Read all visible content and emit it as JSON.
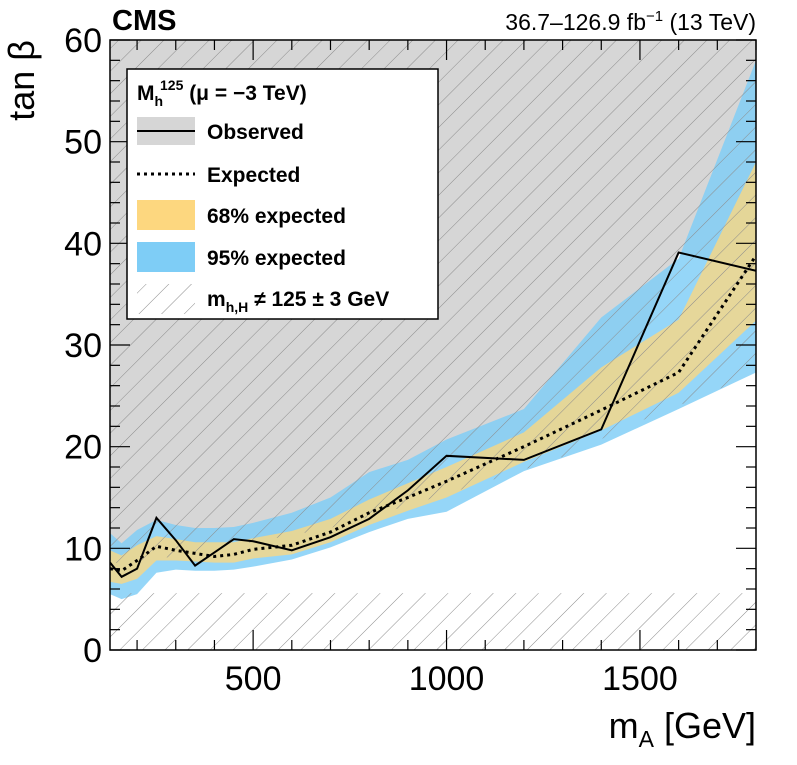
{
  "header": {
    "experiment": "CMS",
    "lumi": "36.7–126.9 fb",
    "lumi_exp": "−1",
    "energy": " (13 TeV)"
  },
  "axes": {
    "xlabel": "m",
    "xlabel_sub": "A",
    "xlabel_unit": " [GeV]",
    "ylabel": "tan β"
  },
  "legend": {
    "title_main": "M",
    "title_sub": "h",
    "title_sup": "125",
    "title_rest": " (μ = −3 TeV)",
    "observed": "Observed",
    "expected": "Expected",
    "band68": "68% expected",
    "band95": "95% expected",
    "hatch_main": "m",
    "hatch_sub": "h,H",
    "hatch_rest": " ≠ 125 ± 3 GeV"
  },
  "colors": {
    "excluded_fill": "#d6d6d6",
    "band68": "#fdd77f",
    "band95": "#7ecdf6",
    "observed": "#000000",
    "expected": "#000000",
    "hatch": "#8c8c8c"
  },
  "chart_data": {
    "type": "line",
    "title": "",
    "xlabel": "m_A [GeV]",
    "ylabel": "tan β",
    "xlim": [
      130,
      1800
    ],
    "ylim": [
      0,
      60
    ],
    "xticks": [
      500,
      1000,
      1500
    ],
    "xtick_labels": [
      "500",
      "1000",
      "1500"
    ],
    "yticks": [
      0,
      10,
      20,
      30,
      40,
      50,
      60
    ],
    "ytick_labels": [
      "0",
      "10",
      "20",
      "30",
      "40",
      "50",
      "60"
    ],
    "x": [
      130,
      160,
      200,
      250,
      300,
      350,
      400,
      450,
      500,
      600,
      700,
      800,
      900,
      1000,
      1200,
      1400,
      1600,
      1800
    ],
    "series": [
      {
        "name": "Observed",
        "style": "solid",
        "values": [
          8.6,
          7.2,
          8.0,
          13.0,
          10.8,
          8.3,
          9.6,
          10.9,
          10.7,
          9.8,
          11.1,
          12.9,
          15.7,
          19.1,
          18.7,
          21.7,
          39.1,
          37.3
        ]
      },
      {
        "name": "Expected",
        "style": "dotted",
        "values": [
          8.0,
          7.8,
          8.8,
          10.2,
          9.8,
          9.5,
          9.2,
          9.4,
          9.9,
          10.3,
          11.6,
          13.5,
          15.0,
          16.6,
          20.0,
          23.6,
          27.3,
          38.8
        ]
      },
      {
        "name": "95% expected",
        "band": true,
        "lower": [
          5.5,
          5.0,
          5.5,
          7.6,
          7.9,
          7.8,
          7.8,
          7.9,
          8.2,
          8.9,
          10.1,
          11.6,
          12.9,
          13.6,
          17.6,
          20.2,
          23.7,
          27.3
        ],
        "upper": [
          11.5,
          10.5,
          11.8,
          12.8,
          12.3,
          12.0,
          12.0,
          12.1,
          12.5,
          13.5,
          15.0,
          17.5,
          18.7,
          20.7,
          23.7,
          32.7,
          38.5,
          58.0
        ]
      },
      {
        "name": "68% expected",
        "band": true,
        "lower": [
          6.7,
          6.5,
          7.0,
          8.8,
          8.8,
          8.7,
          8.6,
          8.6,
          9.0,
          9.4,
          10.6,
          12.3,
          13.7,
          15.0,
          18.5,
          21.6,
          25.3,
          32.4
        ],
        "upper": [
          9.8,
          9.3,
          10.3,
          11.2,
          10.9,
          10.6,
          10.6,
          10.6,
          11.0,
          11.7,
          12.9,
          14.8,
          16.4,
          18.0,
          21.4,
          27.8,
          32.5,
          48.0
        ]
      },
      {
        "name": "m_h,H ≠ 125 ± 3 GeV (upper region)",
        "hatched": true,
        "x": [
          130,
          300,
          500,
          700,
          900,
          1100,
          1300,
          1500,
          1700,
          1800
        ],
        "lower": [
          8.5,
          9.2,
          10.6,
          12.0,
          14.2,
          16.5,
          19.0,
          22.5,
          25.6,
          27.3
        ]
      },
      {
        "name": "m_h,H ≠ 125 ± 3 GeV (lower region)",
        "hatched": true,
        "x": [
          130,
          1800
        ],
        "upper": [
          5.6,
          5.6
        ]
      }
    ]
  }
}
